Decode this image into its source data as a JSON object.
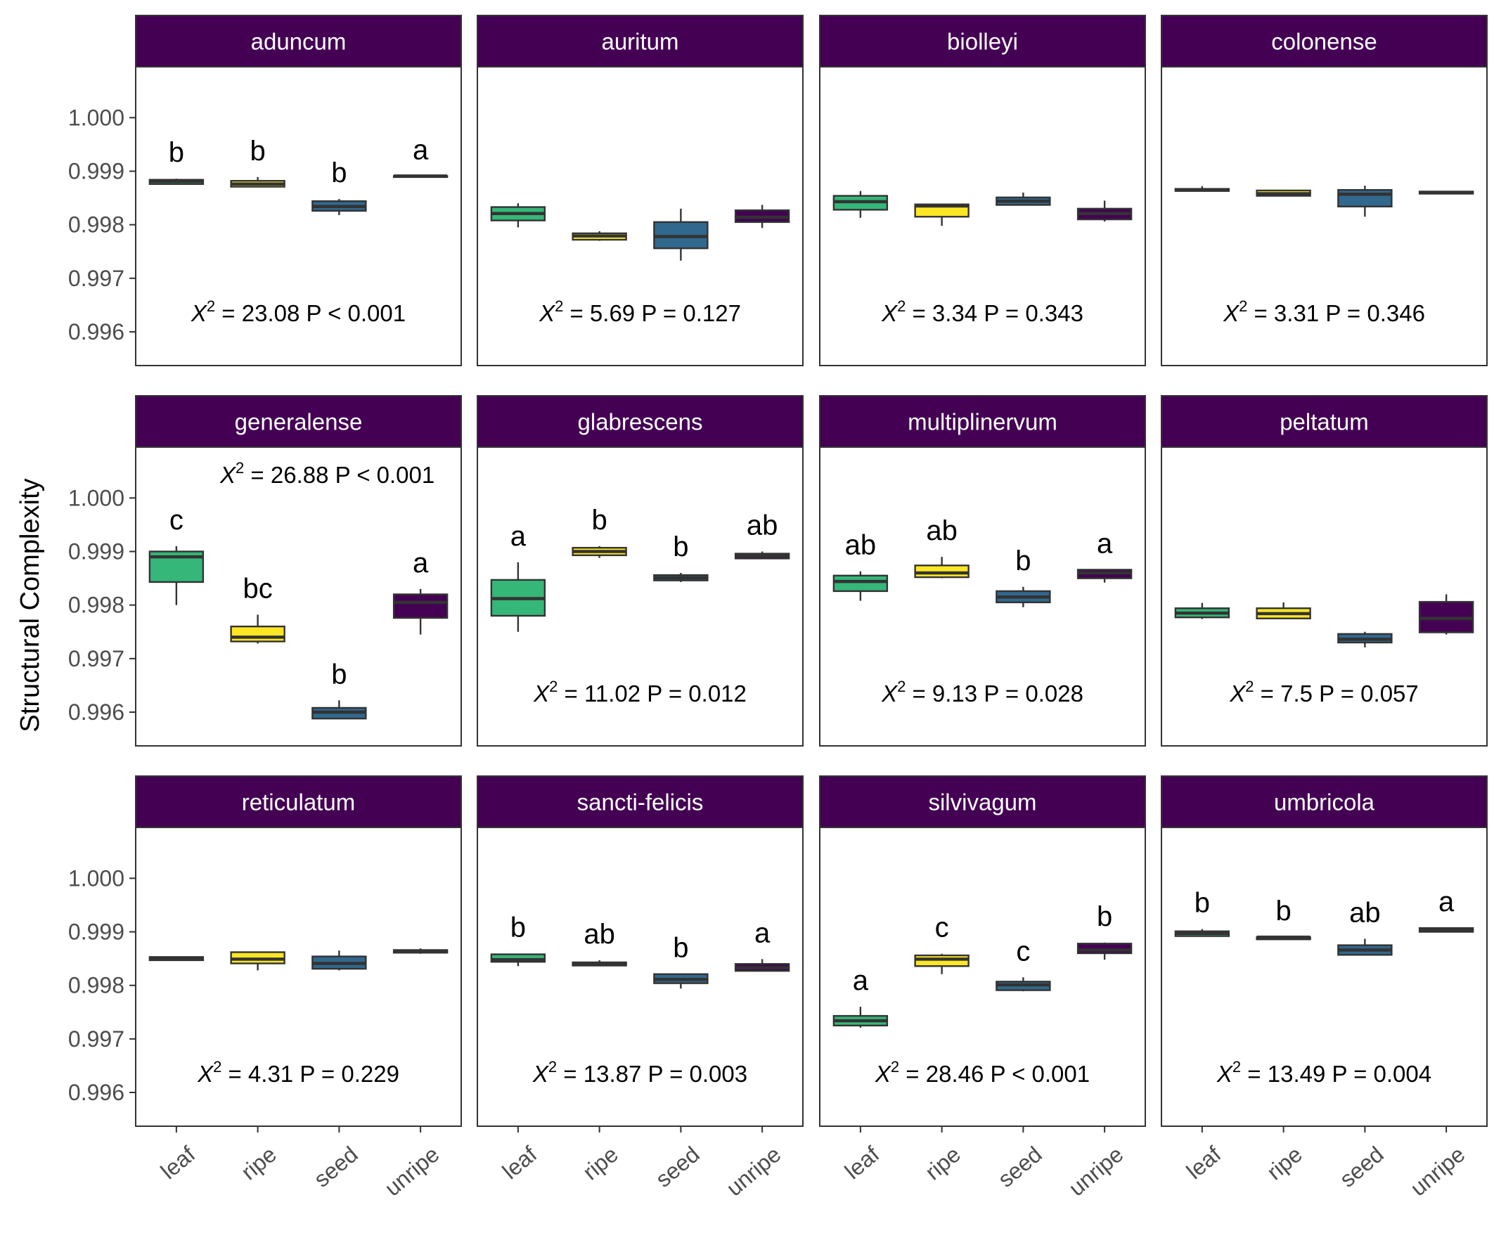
{
  "chart_data": {
    "type": "boxplot",
    "ylabel": "Structural Complexity",
    "xlabel": "",
    "ylim": [
      0.99537,
      1.00095
    ],
    "yticks": [
      0.996,
      0.997,
      0.998,
      0.999,
      1.0
    ],
    "ytick_labels": [
      "0.996",
      "0.997",
      "0.998",
      "0.999",
      "1.000"
    ],
    "categories": [
      "leaf",
      "ripe",
      "seed",
      "unripe"
    ],
    "category_colors": {
      "leaf": "#35b779",
      "ripe": "#fde725",
      "seed": "#31688e",
      "unripe": "#440154"
    },
    "strip_color": "#440154",
    "grid": false,
    "panels": [
      {
        "title": "aduncum",
        "stat": {
          "chi2": "23.08",
          "p_op": "<",
          "p": "0.001"
        },
        "stat_pos": "bottom",
        "boxes": [
          {
            "category": "leaf",
            "min": 0.99875,
            "q1": 0.99876,
            "median": 0.99881,
            "q3": 0.99884,
            "max": 0.99886,
            "letter": "b"
          },
          {
            "category": "ripe",
            "min": 0.99871,
            "q1": 0.99871,
            "median": 0.99876,
            "q3": 0.99882,
            "max": 0.99889,
            "letter": "b"
          },
          {
            "category": "seed",
            "min": 0.99818,
            "q1": 0.99826,
            "median": 0.99834,
            "q3": 0.99844,
            "max": 0.99848,
            "letter": "b"
          },
          {
            "category": "unripe",
            "min": 0.99889,
            "q1": 0.99889,
            "median": 0.99891,
            "q3": 0.99891,
            "max": 0.99891,
            "letter": "a"
          }
        ]
      },
      {
        "title": "auritum",
        "stat": {
          "chi2": "5.69",
          "p_op": "=",
          "p": "0.127"
        },
        "stat_pos": "bottom",
        "boxes": [
          {
            "category": "leaf",
            "min": 0.99795,
            "q1": 0.99808,
            "median": 0.99821,
            "q3": 0.99833,
            "max": 0.9984,
            "letter": ""
          },
          {
            "category": "ripe",
            "min": 0.9977,
            "q1": 0.99772,
            "median": 0.99779,
            "q3": 0.99784,
            "max": 0.99788,
            "letter": ""
          },
          {
            "category": "seed",
            "min": 0.99733,
            "q1": 0.99756,
            "median": 0.99778,
            "q3": 0.99805,
            "max": 0.9983,
            "letter": ""
          },
          {
            "category": "unripe",
            "min": 0.99794,
            "q1": 0.99805,
            "median": 0.99814,
            "q3": 0.99827,
            "max": 0.99837,
            "letter": ""
          }
        ]
      },
      {
        "title": "biolleyi",
        "stat": {
          "chi2": "3.34",
          "p_op": "=",
          "p": "0.343"
        },
        "stat_pos": "bottom",
        "boxes": [
          {
            "category": "leaf",
            "min": 0.99813,
            "q1": 0.99828,
            "median": 0.99843,
            "q3": 0.99854,
            "max": 0.99863,
            "letter": ""
          },
          {
            "category": "ripe",
            "min": 0.99798,
            "q1": 0.99815,
            "median": 0.99835,
            "q3": 0.99838,
            "max": 0.99839,
            "letter": ""
          },
          {
            "category": "seed",
            "min": 0.99836,
            "q1": 0.99837,
            "median": 0.99844,
            "q3": 0.99851,
            "max": 0.9986,
            "letter": ""
          },
          {
            "category": "unripe",
            "min": 0.99806,
            "q1": 0.9981,
            "median": 0.99821,
            "q3": 0.9983,
            "max": 0.99845,
            "letter": ""
          }
        ]
      },
      {
        "title": "colonense",
        "stat": {
          "chi2": "3.31",
          "p_op": "=",
          "p": "0.346"
        },
        "stat_pos": "bottom",
        "boxes": [
          {
            "category": "leaf",
            "min": 0.99862,
            "q1": 0.99863,
            "median": 0.99865,
            "q3": 0.99867,
            "max": 0.99872,
            "letter": ""
          },
          {
            "category": "ripe",
            "min": 0.99853,
            "q1": 0.99854,
            "median": 0.99858,
            "q3": 0.99864,
            "max": 0.99865,
            "letter": ""
          },
          {
            "category": "seed",
            "min": 0.99815,
            "q1": 0.99834,
            "median": 0.99857,
            "q3": 0.99865,
            "max": 0.99873,
            "letter": ""
          },
          {
            "category": "unripe",
            "min": 0.99858,
            "q1": 0.99858,
            "median": 0.9986,
            "q3": 0.99862,
            "max": 0.99862,
            "letter": ""
          }
        ]
      },
      {
        "title": "generalense",
        "stat": {
          "chi2": "26.88",
          "p_op": "<",
          "p": "0.001"
        },
        "stat_pos": "top",
        "boxes": [
          {
            "category": "leaf",
            "min": 0.998,
            "q1": 0.99843,
            "median": 0.9989,
            "q3": 0.999,
            "max": 0.9991,
            "letter": "c"
          },
          {
            "category": "ripe",
            "min": 0.99728,
            "q1": 0.99732,
            "median": 0.9974,
            "q3": 0.9976,
            "max": 0.99782,
            "letter": "bc"
          },
          {
            "category": "seed",
            "min": 0.99588,
            "q1": 0.99588,
            "median": 0.996,
            "q3": 0.99608,
            "max": 0.99622,
            "letter": "b"
          },
          {
            "category": "unripe",
            "min": 0.99745,
            "q1": 0.99776,
            "median": 0.99805,
            "q3": 0.9982,
            "max": 0.9983,
            "letter": "a"
          }
        ]
      },
      {
        "title": "glabrescens",
        "stat": {
          "chi2": "11.02",
          "p_op": "=",
          "p": "0.012"
        },
        "stat_pos": "bottom",
        "boxes": [
          {
            "category": "leaf",
            "min": 0.9975,
            "q1": 0.9978,
            "median": 0.99812,
            "q3": 0.99847,
            "max": 0.9988,
            "letter": "a"
          },
          {
            "category": "ripe",
            "min": 0.99888,
            "q1": 0.99893,
            "median": 0.999,
            "q3": 0.99907,
            "max": 0.9991,
            "letter": "b"
          },
          {
            "category": "seed",
            "min": 0.99843,
            "q1": 0.99846,
            "median": 0.99851,
            "q3": 0.99856,
            "max": 0.9986,
            "letter": "b"
          },
          {
            "category": "unripe",
            "min": 0.99887,
            "q1": 0.99887,
            "median": 0.99892,
            "q3": 0.99896,
            "max": 0.999,
            "letter": "ab"
          }
        ]
      },
      {
        "title": "multiplinervum",
        "stat": {
          "chi2": "9.13",
          "p_op": "=",
          "p": "0.028"
        },
        "stat_pos": "bottom",
        "boxes": [
          {
            "category": "leaf",
            "min": 0.99808,
            "q1": 0.99826,
            "median": 0.99844,
            "q3": 0.99855,
            "max": 0.99863,
            "letter": "ab"
          },
          {
            "category": "ripe",
            "min": 0.9985,
            "q1": 0.99852,
            "median": 0.9986,
            "q3": 0.99874,
            "max": 0.9989,
            "letter": "ab"
          },
          {
            "category": "seed",
            "min": 0.99796,
            "q1": 0.99805,
            "median": 0.99815,
            "q3": 0.99826,
            "max": 0.99834,
            "letter": "b"
          },
          {
            "category": "unripe",
            "min": 0.99842,
            "q1": 0.9985,
            "median": 0.9986,
            "q3": 0.99866,
            "max": 0.99866,
            "letter": "a"
          }
        ]
      },
      {
        "title": "peltatum",
        "stat": {
          "chi2": "7.5",
          "p_op": "=",
          "p": "0.057"
        },
        "stat_pos": "bottom",
        "boxes": [
          {
            "category": "leaf",
            "min": 0.99774,
            "q1": 0.99777,
            "median": 0.99785,
            "q3": 0.99794,
            "max": 0.99804,
            "letter": ""
          },
          {
            "category": "ripe",
            "min": 0.99775,
            "q1": 0.99775,
            "median": 0.99784,
            "q3": 0.99794,
            "max": 0.99805,
            "letter": ""
          },
          {
            "category": "seed",
            "min": 0.99721,
            "q1": 0.9973,
            "median": 0.99736,
            "q3": 0.99746,
            "max": 0.9975,
            "letter": ""
          },
          {
            "category": "unripe",
            "min": 0.99745,
            "q1": 0.99749,
            "median": 0.99775,
            "q3": 0.99806,
            "max": 0.9982,
            "letter": ""
          }
        ]
      },
      {
        "title": "reticulatum",
        "stat": {
          "chi2": "4.31",
          "p_op": "=",
          "p": "0.229"
        },
        "stat_pos": "bottom",
        "boxes": [
          {
            "category": "leaf",
            "min": 0.99847,
            "q1": 0.99847,
            "median": 0.99849,
            "q3": 0.99853,
            "max": 0.99853,
            "letter": ""
          },
          {
            "category": "ripe",
            "min": 0.99828,
            "q1": 0.99841,
            "median": 0.99849,
            "q3": 0.99862,
            "max": 0.99862,
            "letter": ""
          },
          {
            "category": "seed",
            "min": 0.99828,
            "q1": 0.99831,
            "median": 0.99841,
            "q3": 0.99854,
            "max": 0.99865,
            "letter": ""
          },
          {
            "category": "unripe",
            "min": 0.99859,
            "q1": 0.99861,
            "median": 0.99864,
            "q3": 0.99866,
            "max": 0.99869,
            "letter": ""
          }
        ]
      },
      {
        "title": "sancti-felicis",
        "stat": {
          "chi2": "13.87",
          "p_op": "=",
          "p": "0.003"
        },
        "stat_pos": "bottom",
        "boxes": [
          {
            "category": "leaf",
            "min": 0.99836,
            "q1": 0.99844,
            "median": 0.99848,
            "q3": 0.99858,
            "max": 0.99859,
            "letter": "b"
          },
          {
            "category": "ripe",
            "min": 0.99837,
            "q1": 0.99837,
            "median": 0.9984,
            "q3": 0.99843,
            "max": 0.99847,
            "letter": "ab"
          },
          {
            "category": "seed",
            "min": 0.99794,
            "q1": 0.99804,
            "median": 0.99811,
            "q3": 0.99821,
            "max": 0.99821,
            "letter": "b"
          },
          {
            "category": "unripe",
            "min": 0.99826,
            "q1": 0.99827,
            "median": 0.99833,
            "q3": 0.9984,
            "max": 0.99849,
            "letter": "a"
          }
        ]
      },
      {
        "title": "silvivagum",
        "stat": {
          "chi2": "28.46",
          "p_op": "<",
          "p": "0.001"
        },
        "stat_pos": "bottom",
        "boxes": [
          {
            "category": "leaf",
            "min": 0.99721,
            "q1": 0.99725,
            "median": 0.99734,
            "q3": 0.99743,
            "max": 0.9976,
            "letter": "a"
          },
          {
            "category": "ripe",
            "min": 0.99821,
            "q1": 0.99836,
            "median": 0.99849,
            "q3": 0.99856,
            "max": 0.99859,
            "letter": "c"
          },
          {
            "category": "seed",
            "min": 0.99789,
            "q1": 0.99791,
            "median": 0.99801,
            "q3": 0.99807,
            "max": 0.99815,
            "letter": "c"
          },
          {
            "category": "unripe",
            "min": 0.99848,
            "q1": 0.9986,
            "median": 0.99866,
            "q3": 0.99878,
            "max": 0.9988,
            "letter": "b"
          }
        ]
      },
      {
        "title": "umbricola",
        "stat": {
          "chi2": "13.49",
          "p_op": "=",
          "p": "0.004"
        },
        "stat_pos": "bottom",
        "boxes": [
          {
            "category": "leaf",
            "min": 0.99892,
            "q1": 0.99892,
            "median": 0.99897,
            "q3": 0.99901,
            "max": 0.99905,
            "letter": "b"
          },
          {
            "category": "ripe",
            "min": 0.99886,
            "q1": 0.99886,
            "median": 0.9989,
            "q3": 0.9989,
            "max": 0.9989,
            "letter": "b"
          },
          {
            "category": "seed",
            "min": 0.99857,
            "q1": 0.99857,
            "median": 0.99866,
            "q3": 0.99875,
            "max": 0.99887,
            "letter": "ab"
          },
          {
            "category": "unripe",
            "min": 0.999,
            "q1": 0.999,
            "median": 0.99904,
            "q3": 0.99907,
            "max": 0.99907,
            "letter": "a"
          }
        ]
      }
    ]
  }
}
